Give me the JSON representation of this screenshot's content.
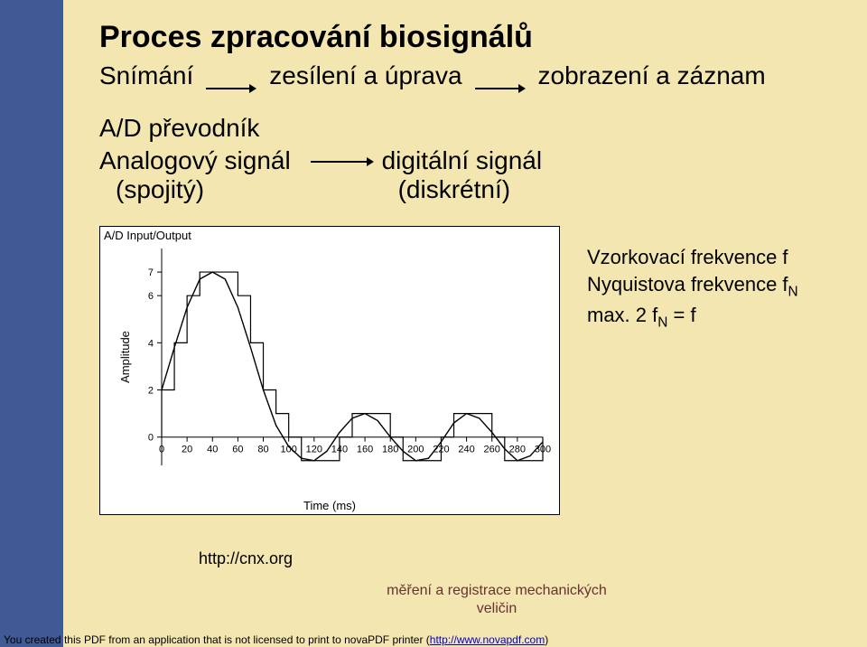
{
  "colors": {
    "side_stripe": "#3f5a94",
    "slide_bg": "#f3e6b0",
    "arrow_color": "#000000",
    "chart_bg": "#ffffff",
    "chart_border": "#000000",
    "axis_color": "#000000",
    "wave_color": "#000000",
    "step_color": "#000000",
    "tick_color": "#000000",
    "footer_text_color": "#663333",
    "link_color": "#0000cc"
  },
  "title": "Proces zpracování biosignálů",
  "flow1": {
    "item1": "Snímání",
    "item2": "zesílení a úprava",
    "item3": "zobrazení a záznam"
  },
  "section2_title": "A/D převodník",
  "flow2": {
    "left_top": "Analogový signál",
    "left_bottom": "(spojitý)",
    "right_top": "digitální signál",
    "right_bottom": "(diskrétní)"
  },
  "chart": {
    "type": "line+step",
    "title": "A/D Input/Output",
    "xlabel": "Time (ms)",
    "ylabel": "Amplitude",
    "x_ticks": [
      0,
      20,
      40,
      60,
      80,
      100,
      120,
      140,
      160,
      180,
      200,
      220,
      240,
      260,
      280,
      300
    ],
    "y_ticks": [
      0,
      2,
      4,
      6,
      7
    ],
    "y_tick_labels": [
      "0",
      "2",
      "4",
      "6",
      "7"
    ],
    "xlim": [
      0,
      300
    ],
    "ylim": [
      -1.2,
      8
    ],
    "title_fontsize": 13,
    "label_fontsize": 13,
    "tick_fontsize": 11,
    "axis_line_width": 1,
    "wave_line_width": 1.4,
    "step_line_width": 1.2,
    "step_interval_ms": 10,
    "continuous": [
      [
        0,
        2.0
      ],
      [
        10,
        3.8
      ],
      [
        20,
        5.5
      ],
      [
        30,
        6.7
      ],
      [
        40,
        7.0
      ],
      [
        50,
        6.7
      ],
      [
        60,
        5.5
      ],
      [
        70,
        3.8
      ],
      [
        80,
        2.0
      ],
      [
        90,
        0.5
      ],
      [
        100,
        -0.4
      ],
      [
        110,
        -0.9
      ],
      [
        120,
        -1.0
      ],
      [
        130,
        -0.6
      ],
      [
        140,
        0.2
      ],
      [
        150,
        0.8
      ],
      [
        160,
        1.0
      ],
      [
        170,
        0.7
      ],
      [
        180,
        0.0
      ],
      [
        190,
        -0.6
      ],
      [
        200,
        -1.0
      ],
      [
        210,
        -0.9
      ],
      [
        220,
        -0.2
      ],
      [
        230,
        0.6
      ],
      [
        240,
        1.0
      ],
      [
        250,
        0.8
      ],
      [
        260,
        0.2
      ],
      [
        270,
        -0.5
      ],
      [
        280,
        -1.0
      ],
      [
        290,
        -0.8
      ],
      [
        300,
        -0.2
      ]
    ],
    "sampled": [
      [
        0,
        2
      ],
      [
        10,
        4
      ],
      [
        20,
        6
      ],
      [
        30,
        7
      ],
      [
        40,
        7
      ],
      [
        50,
        7
      ],
      [
        60,
        6
      ],
      [
        70,
        4
      ],
      [
        80,
        2
      ],
      [
        90,
        1
      ],
      [
        100,
        0
      ],
      [
        110,
        -1
      ],
      [
        120,
        -1
      ],
      [
        130,
        -1
      ],
      [
        140,
        0
      ],
      [
        150,
        1
      ],
      [
        160,
        1
      ],
      [
        170,
        1
      ],
      [
        180,
        0
      ],
      [
        190,
        -1
      ],
      [
        200,
        -1
      ],
      [
        210,
        -1
      ],
      [
        220,
        0
      ],
      [
        230,
        1
      ],
      [
        240,
        1
      ],
      [
        250,
        1
      ],
      [
        260,
        0
      ],
      [
        270,
        -1
      ],
      [
        280,
        -1
      ],
      [
        290,
        -1
      ],
      [
        300,
        0
      ]
    ]
  },
  "side_text": {
    "l1": "Vzorkovací frekvence f",
    "l2_prefix": "Nyquistova frekvence f",
    "l2_sub": "N",
    "l3_prefix": "max. 2 f",
    "l3_sub": "N",
    "l3_suffix": " = f"
  },
  "cnx_link": "http://cnx.org",
  "footer_label": "měření a registrace mechanických veličin",
  "pdf_notice": {
    "prefix": "You created this PDF from an application that is not licensed to print to novaPDF printer (",
    "link_text": "http://www.novapdf.com",
    "suffix": ")"
  }
}
